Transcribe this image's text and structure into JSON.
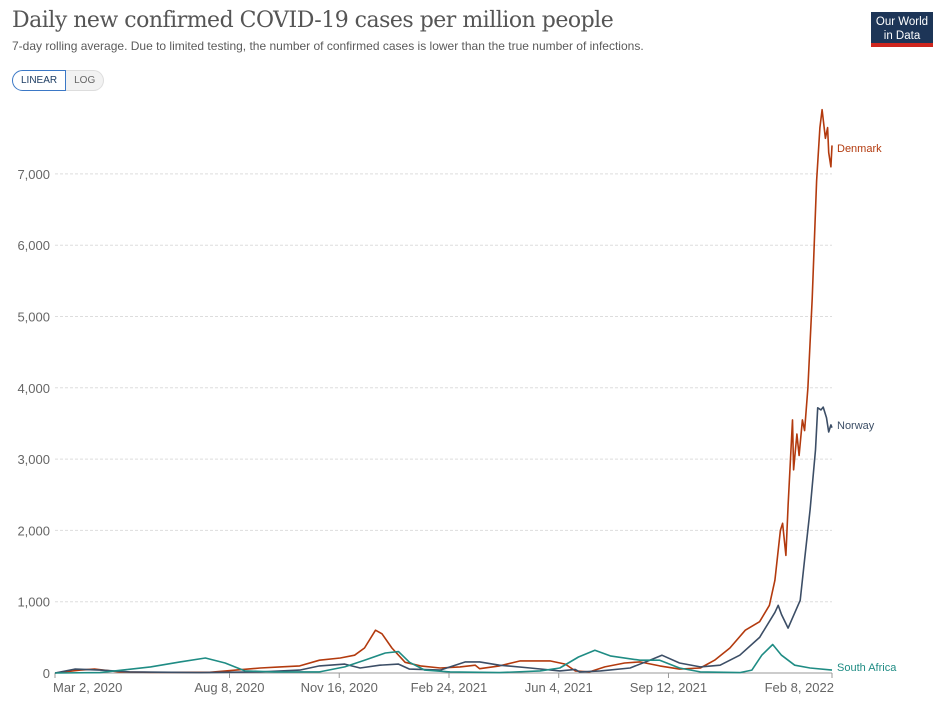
{
  "header": {
    "title": "Daily new confirmed COVID-19 cases per million people",
    "subtitle": "7-day rolling average. Due to limited testing, the number of confirmed cases is lower than the true number of infections.",
    "logo_text": [
      "Our World",
      "in Data"
    ],
    "logo_colors": {
      "background": "#1d3557",
      "stripe": "#ce261e"
    }
  },
  "scale_toggle": {
    "linear_label": "LINEAR",
    "log_label": "LOG",
    "selected": "LINEAR"
  },
  "chart_data": {
    "type": "line",
    "title": "Daily new confirmed COVID-19 cases per million people",
    "xlabel": "",
    "ylabel": "",
    "x_range": [
      "2020-03-02",
      "2022-02-08"
    ],
    "ylim": [
      0,
      7900
    ],
    "y_ticks": [
      0,
      1000,
      2000,
      3000,
      4000,
      5000,
      6000,
      7000
    ],
    "y_tick_labels": [
      "0",
      "1,000",
      "2,000",
      "3,000",
      "4,000",
      "5,000",
      "6,000",
      "7,000"
    ],
    "x_ticks": [
      "2020-03-02",
      "2020-08-08",
      "2020-11-16",
      "2021-02-24",
      "2021-06-04",
      "2021-09-12",
      "2022-02-08"
    ],
    "x_tick_labels": [
      "Mar 2, 2020",
      "Aug 8, 2020",
      "Nov 16, 2020",
      "Feb 24, 2021",
      "Jun 4, 2021",
      "Sep 12, 2021",
      "Feb 8, 2022"
    ],
    "grid": "horizontal dashed",
    "legend": "end-of-line labels",
    "series": [
      {
        "name": "Denmark",
        "color": "#b33a0e",
        "points": [
          [
            "2020-03-02",
            0
          ],
          [
            "2020-03-25",
            40
          ],
          [
            "2020-04-07",
            55
          ],
          [
            "2020-04-30",
            15
          ],
          [
            "2020-05-28",
            10
          ],
          [
            "2020-07-21",
            10
          ],
          [
            "2020-09-05",
            70
          ],
          [
            "2020-09-23",
            85
          ],
          [
            "2020-10-11",
            100
          ],
          [
            "2020-10-29",
            180
          ],
          [
            "2020-11-17",
            210
          ],
          [
            "2020-11-30",
            250
          ],
          [
            "2020-12-09",
            350
          ],
          [
            "2020-12-19",
            600
          ],
          [
            "2020-12-25",
            550
          ],
          [
            "2021-01-03",
            350
          ],
          [
            "2021-01-15",
            150
          ],
          [
            "2021-01-29",
            100
          ],
          [
            "2021-02-16",
            70
          ],
          [
            "2021-03-06",
            85
          ],
          [
            "2021-03-20",
            110
          ],
          [
            "2021-03-24",
            60
          ],
          [
            "2021-04-11",
            100
          ],
          [
            "2021-04-30",
            170
          ],
          [
            "2021-05-27",
            170
          ],
          [
            "2021-06-10",
            125
          ],
          [
            "2021-06-19",
            30
          ],
          [
            "2021-07-02",
            15
          ],
          [
            "2021-07-16",
            85
          ],
          [
            "2021-08-03",
            140
          ],
          [
            "2021-08-17",
            155
          ],
          [
            "2021-09-04",
            100
          ],
          [
            "2021-09-22",
            55
          ],
          [
            "2021-10-11",
            70
          ],
          [
            "2021-10-24",
            180
          ],
          [
            "2021-11-07",
            350
          ],
          [
            "2021-11-21",
            600
          ],
          [
            "2021-12-04",
            720
          ],
          [
            "2021-12-13",
            950
          ],
          [
            "2021-12-18",
            1300
          ],
          [
            "2021-12-23",
            2000
          ],
          [
            "2021-12-25",
            2100
          ],
          [
            "2021-12-28",
            1650
          ],
          [
            "2021-12-30",
            2350
          ],
          [
            "2022-01-03",
            3550
          ],
          [
            "2022-01-04",
            2850
          ],
          [
            "2022-01-07",
            3350
          ],
          [
            "2022-01-09",
            3050
          ],
          [
            "2022-01-12",
            3550
          ],
          [
            "2022-01-14",
            3400
          ],
          [
            "2022-01-17",
            4000
          ],
          [
            "2022-01-21",
            5250
          ],
          [
            "2022-01-25",
            6900
          ],
          [
            "2022-01-28",
            7650
          ],
          [
            "2022-01-30",
            7900
          ],
          [
            "2022-02-02",
            7500
          ],
          [
            "2022-02-04",
            7650
          ],
          [
            "2022-02-05",
            7300
          ],
          [
            "2022-02-07",
            7100
          ],
          [
            "2022-02-08",
            7400
          ]
        ]
      },
      {
        "name": "Norway",
        "color": "#3c4e66",
        "points": [
          [
            "2020-03-02",
            0
          ],
          [
            "2020-03-20",
            55
          ],
          [
            "2020-04-12",
            40
          ],
          [
            "2020-05-09",
            15
          ],
          [
            "2020-07-12",
            5
          ],
          [
            "2020-09-05",
            15
          ],
          [
            "2020-10-11",
            40
          ],
          [
            "2020-10-29",
            100
          ],
          [
            "2020-11-21",
            125
          ],
          [
            "2020-12-05",
            70
          ],
          [
            "2020-12-23",
            110
          ],
          [
            "2021-01-09",
            125
          ],
          [
            "2021-01-19",
            55
          ],
          [
            "2021-02-16",
            40
          ],
          [
            "2021-03-11",
            155
          ],
          [
            "2021-03-24",
            155
          ],
          [
            "2021-04-11",
            110
          ],
          [
            "2021-05-09",
            70
          ],
          [
            "2021-06-05",
            30
          ],
          [
            "2021-06-19",
            50
          ],
          [
            "2021-06-23",
            15
          ],
          [
            "2021-07-12",
            30
          ],
          [
            "2021-08-08",
            70
          ],
          [
            "2021-08-26",
            180
          ],
          [
            "2021-09-06",
            250
          ],
          [
            "2021-09-22",
            140
          ],
          [
            "2021-10-11",
            85
          ],
          [
            "2021-10-29",
            110
          ],
          [
            "2021-11-16",
            250
          ],
          [
            "2021-12-04",
            500
          ],
          [
            "2021-12-18",
            850
          ],
          [
            "2021-12-21",
            950
          ],
          [
            "2021-12-24",
            820
          ],
          [
            "2021-12-30",
            630
          ],
          [
            "2022-01-10",
            1020
          ],
          [
            "2022-01-14",
            1590
          ],
          [
            "2022-01-19",
            2290
          ],
          [
            "2022-01-24",
            3130
          ],
          [
            "2022-01-26",
            3720
          ],
          [
            "2022-01-29",
            3690
          ],
          [
            "2022-01-31",
            3730
          ],
          [
            "2022-02-03",
            3580
          ],
          [
            "2022-02-05",
            3380
          ],
          [
            "2022-02-07",
            3480
          ],
          [
            "2022-02-08",
            3440
          ]
        ]
      },
      {
        "name": "South Africa",
        "color": "#1f8c84",
        "points": [
          [
            "2020-03-02",
            0
          ],
          [
            "2020-04-12",
            5
          ],
          [
            "2020-05-28",
            85
          ],
          [
            "2020-06-24",
            155
          ],
          [
            "2020-07-17",
            210
          ],
          [
            "2020-08-04",
            140
          ],
          [
            "2020-08-22",
            30
          ],
          [
            "2020-09-18",
            15
          ],
          [
            "2020-10-29",
            15
          ],
          [
            "2020-11-21",
            85
          ],
          [
            "2020-12-09",
            180
          ],
          [
            "2020-12-28",
            280
          ],
          [
            "2021-01-09",
            300
          ],
          [
            "2021-01-19",
            150
          ],
          [
            "2021-02-02",
            40
          ],
          [
            "2021-02-25",
            15
          ],
          [
            "2021-04-11",
            5
          ],
          [
            "2021-05-18",
            30
          ],
          [
            "2021-06-05",
            70
          ],
          [
            "2021-06-22",
            225
          ],
          [
            "2021-07-07",
            320
          ],
          [
            "2021-07-21",
            240
          ],
          [
            "2021-08-17",
            180
          ],
          [
            "2021-09-04",
            180
          ],
          [
            "2021-09-22",
            70
          ],
          [
            "2021-10-11",
            15
          ],
          [
            "2021-11-16",
            5
          ],
          [
            "2021-11-27",
            40
          ],
          [
            "2021-12-06",
            250
          ],
          [
            "2021-12-16",
            400
          ],
          [
            "2021-12-24",
            250
          ],
          [
            "2022-01-05",
            110
          ],
          [
            "2022-01-19",
            70
          ],
          [
            "2022-02-08",
            40
          ]
        ]
      }
    ]
  }
}
